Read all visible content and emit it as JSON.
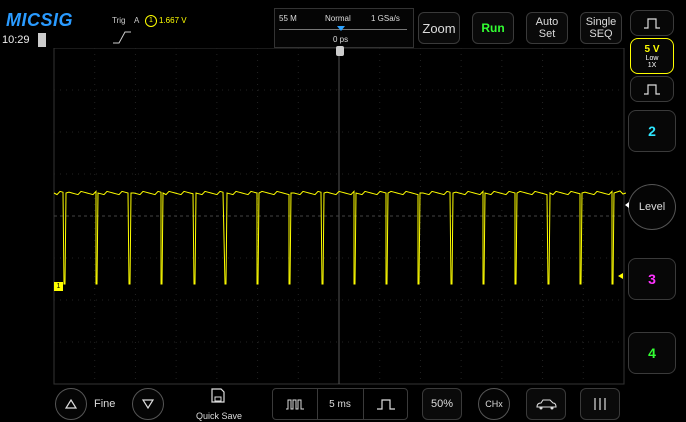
{
  "brand": {
    "logo": "MICSIG",
    "time": "10:29"
  },
  "trigger": {
    "label_trig": "Trig",
    "label_src": "A",
    "channel_num": "1",
    "level": "1.667 V"
  },
  "acq": {
    "depth": "55 M",
    "mode": "Normal",
    "rate": "1 GSa/s",
    "offset": "0 ps"
  },
  "toolbar": {
    "zoom": "Zoom",
    "run": "Run",
    "auto_set_1": "Auto",
    "auto_set_2": "Set",
    "single_1": "Single",
    "single_2": "SEQ"
  },
  "channel1": {
    "volts": "5 V",
    "coupling": "Low",
    "probe": "1X"
  },
  "channels": {
    "ch2": "2",
    "ch3": "3",
    "ch4": "4",
    "level": "Level"
  },
  "bottom": {
    "fine": "Fine",
    "quick_save": "Quick Save",
    "timebase": "5 ms",
    "percent": "50%",
    "chx": "CHx"
  },
  "marker": {
    "ch1": "1"
  },
  "colors": {
    "ch1": "#ffff00",
    "ch2": "#2ee6ff",
    "ch3": "#ff33ff",
    "ch4": "#33ff33",
    "run": "#33ff33"
  },
  "icons": [
    "battery-icon",
    "trigger-edge-icon",
    "pulse-icon",
    "save-icon",
    "square-wave-icon",
    "car-icon",
    "bars-icon",
    "triangle-up-icon",
    "triangle-down-icon"
  ]
}
